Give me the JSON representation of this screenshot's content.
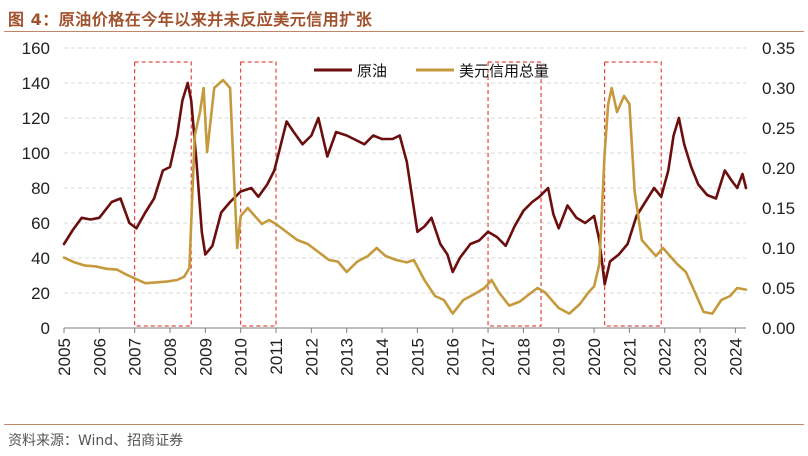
{
  "title": "图 4：原油价格在今年以来并未反应美元信用扩张",
  "source": "资料来源：Wind、招商证券",
  "chart_data": {
    "type": "line",
    "legend": {
      "placement": "top-center",
      "entries": [
        "原油",
        "美元信用总量"
      ]
    },
    "grid": true,
    "xlim": [
      2005.0,
      2024.3
    ],
    "x_ticks": [
      "2005",
      "2006",
      "2007",
      "2008",
      "2009",
      "2010",
      "2011",
      "2012",
      "2013",
      "2014",
      "2015",
      "2016",
      "2017",
      "2018",
      "2019",
      "2020",
      "2021",
      "2022",
      "2023",
      "2024"
    ],
    "y_left": {
      "ylim": [
        0,
        160
      ],
      "ticks": [
        0,
        20,
        40,
        60,
        80,
        100,
        120,
        140,
        160
      ]
    },
    "y_right": {
      "ylim": [
        0.0,
        0.35
      ],
      "ticks": [
        "0.00",
        "0.05",
        "0.10",
        "0.15",
        "0.20",
        "0.25",
        "0.30",
        "0.35"
      ]
    },
    "highlight_periods": [
      [
        2007.0,
        2008.6
      ],
      [
        2010.0,
        2011.0
      ],
      [
        2017.0,
        2018.5
      ],
      [
        2020.3,
        2021.9
      ]
    ],
    "series": [
      {
        "name": "原油",
        "axis": "left",
        "color": "#6b0e0e",
        "points": [
          [
            2005.0,
            48
          ],
          [
            2005.25,
            56
          ],
          [
            2005.5,
            63
          ],
          [
            2005.75,
            62
          ],
          [
            2006.0,
            63
          ],
          [
            2006.35,
            72
          ],
          [
            2006.6,
            74
          ],
          [
            2006.85,
            60
          ],
          [
            2007.05,
            57
          ],
          [
            2007.3,
            66
          ],
          [
            2007.55,
            74
          ],
          [
            2007.8,
            90
          ],
          [
            2008.0,
            92
          ],
          [
            2008.2,
            110
          ],
          [
            2008.35,
            130
          ],
          [
            2008.5,
            140
          ],
          [
            2008.6,
            130
          ],
          [
            2008.75,
            95
          ],
          [
            2008.9,
            55
          ],
          [
            2009.0,
            42
          ],
          [
            2009.2,
            47
          ],
          [
            2009.45,
            66
          ],
          [
            2009.7,
            72
          ],
          [
            2010.0,
            78
          ],
          [
            2010.3,
            80
          ],
          [
            2010.5,
            75
          ],
          [
            2010.75,
            82
          ],
          [
            2010.95,
            90
          ],
          [
            2011.1,
            102
          ],
          [
            2011.3,
            118
          ],
          [
            2011.5,
            112
          ],
          [
            2011.75,
            105
          ],
          [
            2012.0,
            110
          ],
          [
            2012.2,
            120
          ],
          [
            2012.45,
            98
          ],
          [
            2012.7,
            112
          ],
          [
            2013.0,
            110
          ],
          [
            2013.2,
            108
          ],
          [
            2013.5,
            105
          ],
          [
            2013.75,
            110
          ],
          [
            2014.0,
            108
          ],
          [
            2014.3,
            108
          ],
          [
            2014.5,
            110
          ],
          [
            2014.7,
            95
          ],
          [
            2014.85,
            75
          ],
          [
            2015.0,
            55
          ],
          [
            2015.2,
            58
          ],
          [
            2015.4,
            63
          ],
          [
            2015.65,
            48
          ],
          [
            2015.85,
            42
          ],
          [
            2016.0,
            32
          ],
          [
            2016.2,
            40
          ],
          [
            2016.5,
            48
          ],
          [
            2016.75,
            50
          ],
          [
            2017.0,
            55
          ],
          [
            2017.25,
            52
          ],
          [
            2017.5,
            47
          ],
          [
            2017.75,
            58
          ],
          [
            2018.0,
            67
          ],
          [
            2018.25,
            72
          ],
          [
            2018.45,
            75
          ],
          [
            2018.7,
            80
          ],
          [
            2018.85,
            65
          ],
          [
            2019.0,
            57
          ],
          [
            2019.25,
            70
          ],
          [
            2019.5,
            63
          ],
          [
            2019.75,
            60
          ],
          [
            2020.0,
            64
          ],
          [
            2020.15,
            50
          ],
          [
            2020.3,
            25
          ],
          [
            2020.45,
            38
          ],
          [
            2020.7,
            42
          ],
          [
            2020.95,
            48
          ],
          [
            2021.2,
            64
          ],
          [
            2021.45,
            72
          ],
          [
            2021.7,
            80
          ],
          [
            2021.9,
            75
          ],
          [
            2022.1,
            90
          ],
          [
            2022.25,
            110
          ],
          [
            2022.4,
            120
          ],
          [
            2022.55,
            105
          ],
          [
            2022.75,
            92
          ],
          [
            2022.95,
            82
          ],
          [
            2023.2,
            76
          ],
          [
            2023.45,
            74
          ],
          [
            2023.7,
            90
          ],
          [
            2023.9,
            84
          ],
          [
            2024.05,
            80
          ],
          [
            2024.2,
            88
          ],
          [
            2024.3,
            80
          ]
        ]
      },
      {
        "name": "美元信用总量",
        "axis": "right",
        "color": "#c49a3c",
        "points": [
          [
            2005.0,
            0.088
          ],
          [
            2005.3,
            0.082
          ],
          [
            2005.6,
            0.078
          ],
          [
            2005.9,
            0.077
          ],
          [
            2006.2,
            0.074
          ],
          [
            2006.5,
            0.073
          ],
          [
            2006.8,
            0.066
          ],
          [
            2007.0,
            0.062
          ],
          [
            2007.3,
            0.056
          ],
          [
            2007.6,
            0.057
          ],
          [
            2007.9,
            0.058
          ],
          [
            2008.2,
            0.06
          ],
          [
            2008.4,
            0.064
          ],
          [
            2008.55,
            0.075
          ],
          [
            2008.7,
            0.24
          ],
          [
            2008.85,
            0.27
          ],
          [
            2008.95,
            0.3
          ],
          [
            2009.05,
            0.22
          ],
          [
            2009.25,
            0.3
          ],
          [
            2009.5,
            0.31
          ],
          [
            2009.7,
            0.3
          ],
          [
            2009.8,
            0.2
          ],
          [
            2009.9,
            0.1
          ],
          [
            2010.0,
            0.14
          ],
          [
            2010.2,
            0.15
          ],
          [
            2010.4,
            0.14
          ],
          [
            2010.6,
            0.13
          ],
          [
            2010.8,
            0.135
          ],
          [
            2011.0,
            0.13
          ],
          [
            2011.3,
            0.12
          ],
          [
            2011.6,
            0.11
          ],
          [
            2011.9,
            0.105
          ],
          [
            2012.2,
            0.095
          ],
          [
            2012.5,
            0.085
          ],
          [
            2012.75,
            0.083
          ],
          [
            2013.0,
            0.07
          ],
          [
            2013.3,
            0.083
          ],
          [
            2013.6,
            0.09
          ],
          [
            2013.85,
            0.1
          ],
          [
            2014.1,
            0.09
          ],
          [
            2014.4,
            0.085
          ],
          [
            2014.7,
            0.082
          ],
          [
            2014.9,
            0.085
          ],
          [
            2015.2,
            0.06
          ],
          [
            2015.5,
            0.04
          ],
          [
            2015.75,
            0.035
          ],
          [
            2016.0,
            0.018
          ],
          [
            2016.3,
            0.035
          ],
          [
            2016.6,
            0.042
          ],
          [
            2016.9,
            0.05
          ],
          [
            2017.1,
            0.06
          ],
          [
            2017.3,
            0.045
          ],
          [
            2017.6,
            0.028
          ],
          [
            2017.9,
            0.033
          ],
          [
            2018.1,
            0.04
          ],
          [
            2018.4,
            0.05
          ],
          [
            2018.6,
            0.045
          ],
          [
            2018.8,
            0.035
          ],
          [
            2019.0,
            0.025
          ],
          [
            2019.3,
            0.018
          ],
          [
            2019.6,
            0.03
          ],
          [
            2019.85,
            0.045
          ],
          [
            2020.0,
            0.052
          ],
          [
            2020.15,
            0.08
          ],
          [
            2020.3,
            0.22
          ],
          [
            2020.4,
            0.28
          ],
          [
            2020.5,
            0.3
          ],
          [
            2020.65,
            0.27
          ],
          [
            2020.85,
            0.29
          ],
          [
            2021.0,
            0.28
          ],
          [
            2021.15,
            0.17
          ],
          [
            2021.35,
            0.11
          ],
          [
            2021.55,
            0.1
          ],
          [
            2021.75,
            0.09
          ],
          [
            2021.95,
            0.1
          ],
          [
            2022.15,
            0.09
          ],
          [
            2022.35,
            0.08
          ],
          [
            2022.6,
            0.07
          ],
          [
            2022.85,
            0.045
          ],
          [
            2023.1,
            0.02
          ],
          [
            2023.35,
            0.018
          ],
          [
            2023.6,
            0.035
          ],
          [
            2023.85,
            0.04
          ],
          [
            2024.05,
            0.05
          ],
          [
            2024.3,
            0.048
          ]
        ]
      }
    ]
  }
}
